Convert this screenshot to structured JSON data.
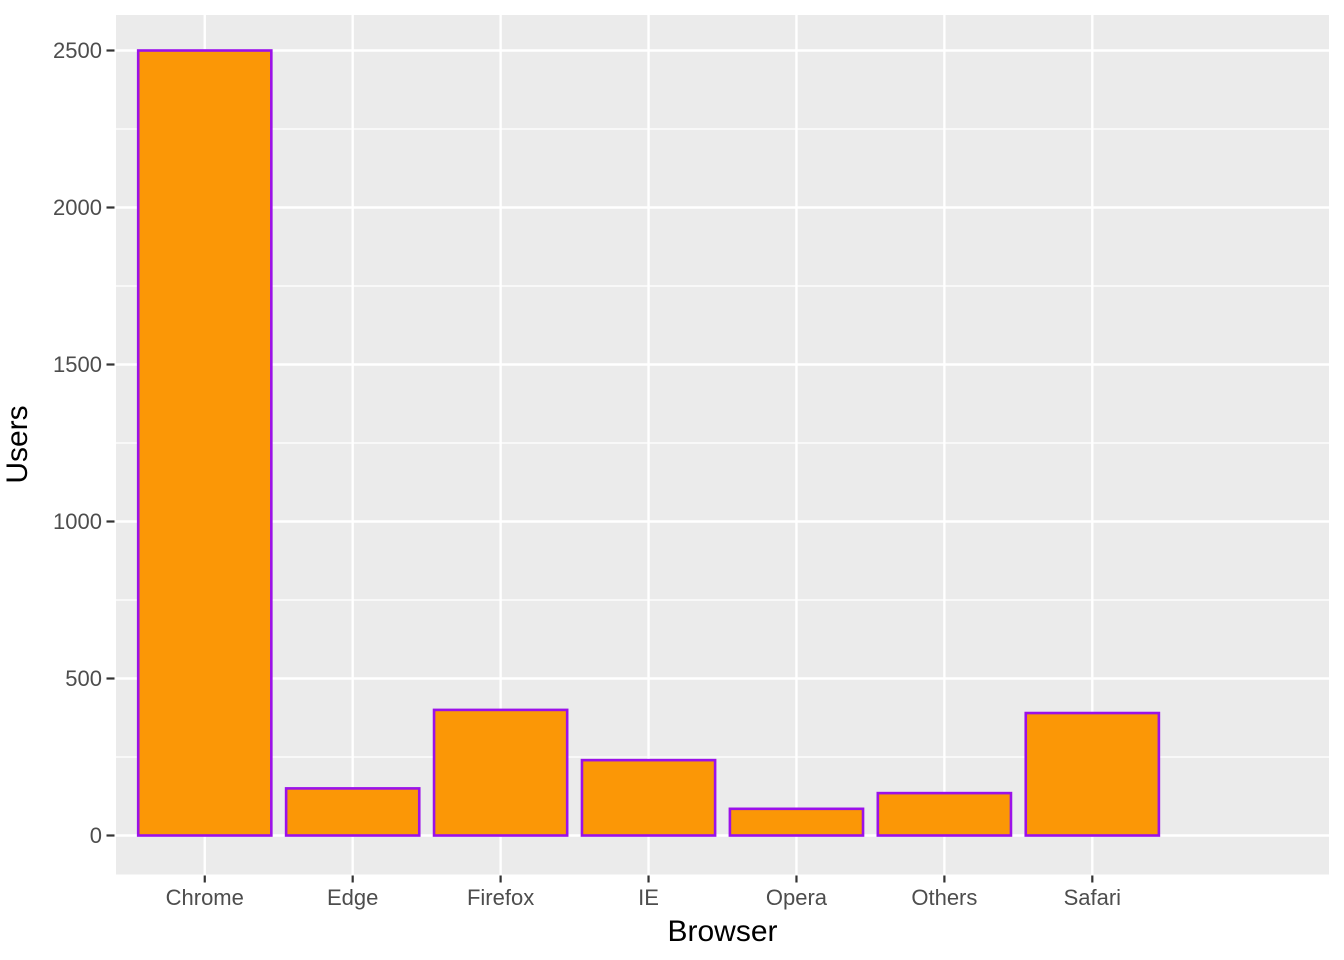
{
  "chart_data": {
    "type": "bar",
    "title": "",
    "xlabel": "Browser",
    "ylabel": "Users",
    "categories": [
      "Chrome",
      "Edge",
      "Firefox",
      "IE",
      "Opera",
      "Others",
      "Safari"
    ],
    "values": [
      2500,
      150,
      400,
      240,
      85,
      135,
      390
    ],
    "ylim": [
      0,
      2500
    ],
    "yticks": [
      0,
      500,
      1000,
      1500,
      2000,
      2500
    ],
    "ytick_labels": [
      "0",
      "500",
      "1000",
      "1500",
      "2000",
      "2500"
    ],
    "minor_yticks": [
      250,
      750,
      1250,
      1750,
      2250
    ],
    "grid": "on",
    "legend": "none",
    "bar_width_fraction": 0.9
  },
  "style": {
    "theme": "ggplot-gray-panel",
    "figure_bg": "#FFFFFF",
    "panel_bg": "#EBEBEB",
    "grid_color": "#FFFFFF",
    "bar_fill": "#FB9706",
    "bar_stroke": "#9B11E9",
    "tick_mark_color": "#333333",
    "tick_label_color": "#4D4D4D",
    "axis_title_color": "#000000"
  }
}
